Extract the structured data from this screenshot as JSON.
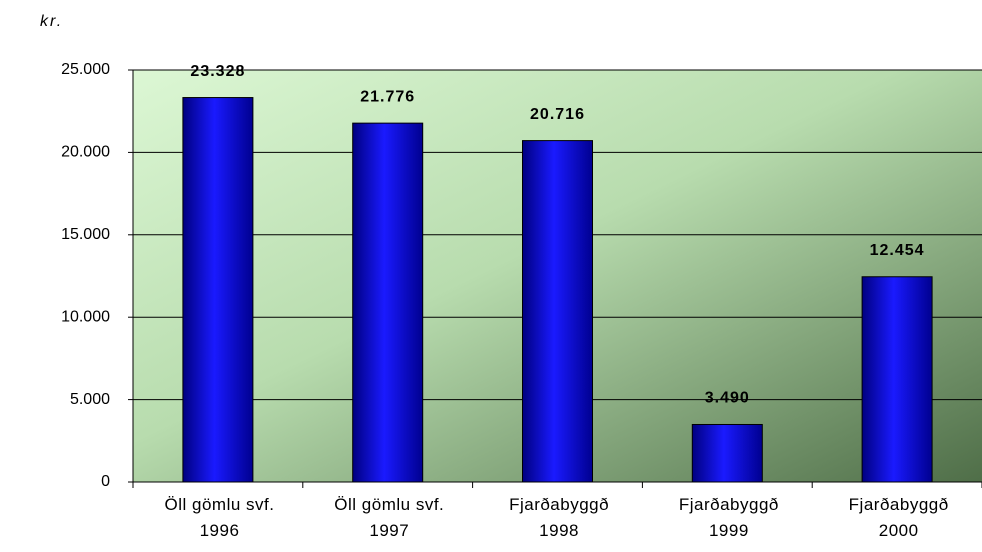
{
  "chart_data": {
    "type": "bar",
    "y_axis_label": "kr.",
    "categories": [
      "Öll gömlu svf.\n1996",
      "Öll gömlu svf.\n1997",
      "Fjarðabyggð\n1998",
      "Fjarðabyggð\n1999",
      "Fjarðabyggð\n2000"
    ],
    "values": [
      23328,
      21776,
      20716,
      3490,
      12454
    ],
    "value_labels": [
      "23.328",
      "21.776",
      "20.716",
      "3.490",
      "12.454"
    ],
    "color": "#0a0ad8",
    "ylim": [
      0,
      25000
    ],
    "yticks": [
      0,
      {
        "value": 5000,
        "label": "5.000"
      },
      {
        "value": 10000,
        "label": "10.000"
      },
      {
        "value": 15000,
        "label": "15.000"
      },
      {
        "value": 20000,
        "label": "20.000"
      },
      {
        "value": 25000,
        "label": "25.000"
      }
    ],
    "grid": true
  }
}
